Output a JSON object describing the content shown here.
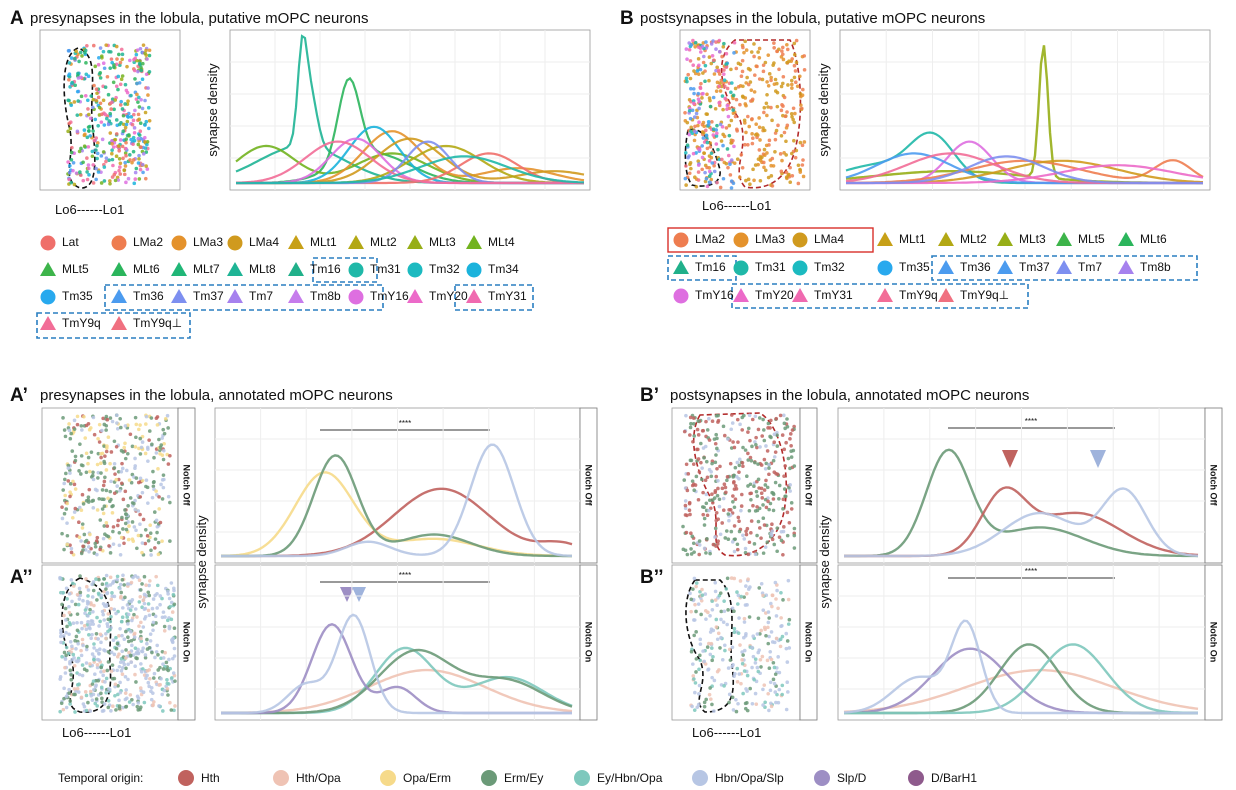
{
  "panels": [
    {
      "label": "A",
      "title": "presynapses in the lobula, putative mOPC neurons",
      "x_label": "Lo6------Lo1",
      "y_label": "synapse density",
      "legend": [
        {
          "label": "Lat",
          "color": "#ef6f6a",
          "shape": "circle"
        },
        {
          "label": "LMa2",
          "color": "#ee7d50",
          "shape": "circle"
        },
        {
          "label": "LMa3",
          "color": "#e4922c",
          "shape": "circle"
        },
        {
          "label": "LMa4",
          "color": "#d09a1e",
          "shape": "circle"
        },
        {
          "label": "MLt1",
          "color": "#c7a017",
          "shape": "triangle"
        },
        {
          "label": "MLt2",
          "color": "#b3a814",
          "shape": "triangle"
        },
        {
          "label": "MLt3",
          "color": "#97ae17",
          "shape": "triangle"
        },
        {
          "label": "MLt4",
          "color": "#72b31f",
          "shape": "triangle"
        },
        {
          "label": "MLt5",
          "color": "#3db44a",
          "shape": "triangle"
        },
        {
          "label": "MLt6",
          "color": "#2bb55c",
          "shape": "triangle"
        },
        {
          "label": "MLt7",
          "color": "#20b677",
          "shape": "triangle"
        },
        {
          "label": "MLt8",
          "color": "#1eb495",
          "shape": "triangle"
        },
        {
          "label": "Tm16",
          "color": "#20b08a",
          "shape": "triangle"
        },
        {
          "label": "Tm31",
          "color": "#1fb8a8",
          "shape": "circle"
        },
        {
          "label": "Tm32",
          "color": "#1cbac0",
          "shape": "circle"
        },
        {
          "label": "Tm34",
          "color": "#1bb3dc",
          "shape": "circle"
        },
        {
          "label": "Tm35",
          "color": "#28a9ee",
          "shape": "circle"
        },
        {
          "label": "Tm36",
          "color": "#4b9bef",
          "shape": "triangle"
        },
        {
          "label": "Tm37",
          "color": "#7d8ff0",
          "shape": "triangle"
        },
        {
          "label": "Tm7",
          "color": "#a681ee",
          "shape": "triangle"
        },
        {
          "label": "Tm8b",
          "color": "#c67cec",
          "shape": "triangle"
        },
        {
          "label": "TmY16",
          "color": "#de6fe0",
          "shape": "circle"
        },
        {
          "label": "TmY20",
          "color": "#ec6ac9",
          "shape": "triangle"
        },
        {
          "label": "TmY31",
          "color": "#f06ab0",
          "shape": "triangle"
        },
        {
          "label": "TmY9q",
          "color": "#f26d97",
          "shape": "triangle"
        },
        {
          "label": "TmY9q⊥",
          "color": "#f07080",
          "shape": "triangle"
        }
      ]
    },
    {
      "label": "B",
      "title": "postsynapses in the lobula, putative mOPC neurons",
      "x_label": "Lo6------Lo1",
      "y_label": "synapse density",
      "legend": [
        {
          "label": "LMa2",
          "color": "#ee7d50",
          "shape": "circle"
        },
        {
          "label": "LMa3",
          "color": "#e4922c",
          "shape": "circle"
        },
        {
          "label": "LMa4",
          "color": "#d09a1e",
          "shape": "circle"
        },
        {
          "label": "MLt1",
          "color": "#c7a017",
          "shape": "triangle"
        },
        {
          "label": "MLt2",
          "color": "#b3a814",
          "shape": "triangle"
        },
        {
          "label": "MLt3",
          "color": "#97ae17",
          "shape": "triangle"
        },
        {
          "label": "MLt5",
          "color": "#3db44a",
          "shape": "triangle"
        },
        {
          "label": "MLt6",
          "color": "#2bb55c",
          "shape": "triangle"
        },
        {
          "label": "Tm16",
          "color": "#20b08a",
          "shape": "triangle"
        },
        {
          "label": "Tm31",
          "color": "#1fb8a8",
          "shape": "circle"
        },
        {
          "label": "Tm32",
          "color": "#1cbac0",
          "shape": "circle"
        },
        {
          "label": "Tm35",
          "color": "#28a9ee",
          "shape": "circle"
        },
        {
          "label": "Tm36",
          "color": "#4b9bef",
          "shape": "triangle"
        },
        {
          "label": "Tm37",
          "color": "#4b9bef",
          "shape": "triangle"
        },
        {
          "label": "Tm7",
          "color": "#7d8ff0",
          "shape": "triangle"
        },
        {
          "label": "Tm8b",
          "color": "#a681ee",
          "shape": "triangle"
        },
        {
          "label": "TmY16",
          "color": "#de6fe0",
          "shape": "circle"
        },
        {
          "label": "TmY20",
          "color": "#ec6ac9",
          "shape": "triangle"
        },
        {
          "label": "TmY31",
          "color": "#f06ab0",
          "shape": "triangle"
        },
        {
          "label": "TmY9q",
          "color": "#f26d97",
          "shape": "triangle"
        },
        {
          "label": "TmY9q⊥",
          "color": "#f07080",
          "shape": "triangle"
        }
      ]
    },
    {
      "label": "A’",
      "sublabel": "A’’",
      "title": "presynapses in the lobula, annotated mOPC neurons",
      "x_label": "Lo6------Lo1",
      "y_label": "synapse density",
      "facets": [
        "Notch Off",
        "Notch On"
      ],
      "significance": [
        "****",
        "****"
      ]
    },
    {
      "label": "B’",
      "sublabel": "B’’",
      "title": "postsynapses in the lobula, annotated mOPC neurons",
      "x_label": "Lo6------Lo1",
      "y_label": "synapse density",
      "facets": [
        "Notch Off",
        "Notch On"
      ],
      "significance": [
        "****",
        "****"
      ]
    }
  ],
  "temporal_legend": {
    "title": "Temporal origin:",
    "items": [
      {
        "label": "Hth",
        "color": "#c0625e"
      },
      {
        "label": "Hth/Opa",
        "color": "#efc3b4"
      },
      {
        "label": "Opa/Erm",
        "color": "#f6da8a"
      },
      {
        "label": "Erm/Ey",
        "color": "#6b9a78"
      },
      {
        "label": "Ey/Hbn/Opa",
        "color": "#7ec8bd"
      },
      {
        "label": "Hbn/Opa/Slp",
        "color": "#b7c6e4"
      },
      {
        "label": "Slp/D",
        "color": "#9d8ec4"
      },
      {
        "label": "D/BarH1",
        "color": "#8e5a8c"
      }
    ]
  }
}
